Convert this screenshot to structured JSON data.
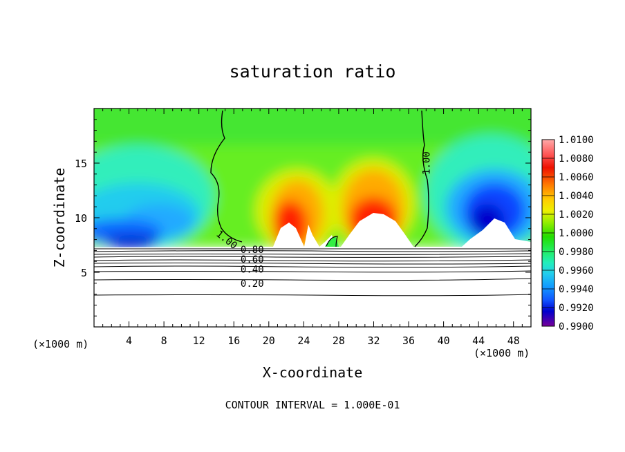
{
  "chart_data": {
    "type": "heatmap",
    "title": "saturation ratio",
    "xlabel": "X-coordinate",
    "ylabel": "Z-coordinate",
    "x_unit_left": "(×1000 m)",
    "x_unit_right": "(×1000 m)",
    "xlim": [
      0,
      50
    ],
    "ylim": [
      0,
      20
    ],
    "x_ticks": [
      "4",
      "8",
      "12",
      "16",
      "20",
      "24",
      "28",
      "32",
      "36",
      "40",
      "44",
      "48"
    ],
    "y_ticks": [
      "5",
      "10",
      "15"
    ],
    "footer": "CONTOUR INTERVAL = 1.000E-01",
    "colorbar": {
      "ticks": [
        "1.0100",
        "1.0080",
        "1.0060",
        "1.0040",
        "1.0020",
        "1.0000",
        "0.9980",
        "0.9960",
        "0.9940",
        "0.9920",
        "0.9900"
      ],
      "colors": [
        "#ff3333",
        "#ff5555",
        "#ff0000",
        "#ee2200",
        "#ff6600",
        "#ff9900",
        "#ffcc00",
        "#ffee00",
        "#ddee00",
        "#aaee00",
        "#66dd00",
        "#22dd00",
        "#22ee44",
        "#22ee88",
        "#22eecc",
        "#22ddee",
        "#22bbff",
        "#1188ff",
        "#1155ff",
        "#0022ee",
        "#0000cc",
        "#440088",
        "#7700aa"
      ]
    },
    "contour_labels": [
      {
        "text": "1.00",
        "x": 15.2,
        "z": 8.0,
        "angle": 38
      },
      {
        "text": "1.00",
        "x": 38.0,
        "z": 15.0,
        "angle": -90
      },
      {
        "text": "0.80",
        "x": 18.1,
        "z": 7.1,
        "angle": 0
      },
      {
        "text": "0.60",
        "x": 18.1,
        "z": 6.2,
        "angle": 0
      },
      {
        "text": "0.40",
        "x": 18.1,
        "z": 5.3,
        "angle": 0
      },
      {
        "text": "0.20",
        "x": 18.1,
        "z": 4.0,
        "angle": 0
      }
    ]
  }
}
